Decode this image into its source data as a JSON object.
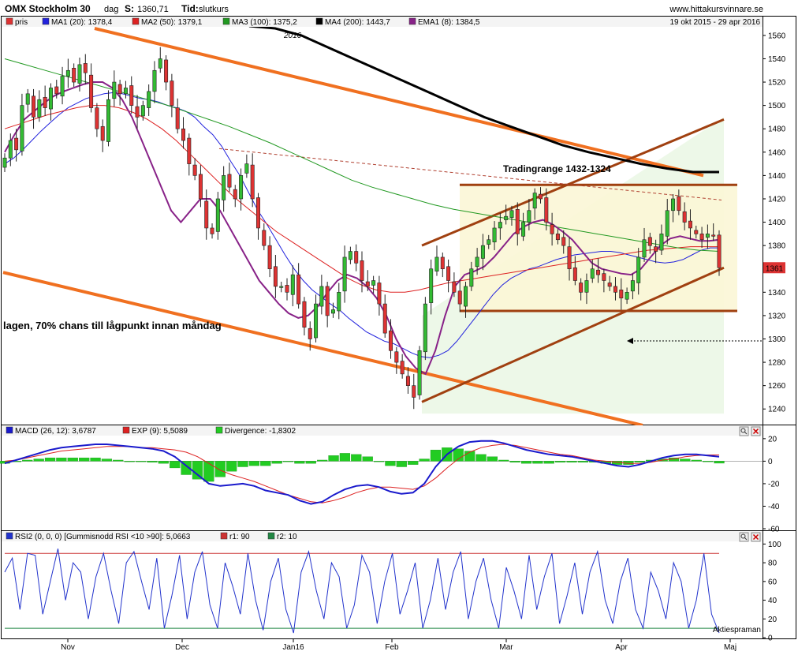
{
  "header": {
    "instrument": "OMX Stockholm 30",
    "interval": "dag",
    "s_label": "S:",
    "s_value": "1360,71",
    "tid_label": "Tid:",
    "tid_value": "slutkurs",
    "site": "www.hittakursvinnare.se",
    "date_range": "19 okt 2015 - 29 apr 2016"
  },
  "colors": {
    "up_candle": "#33bb33",
    "down_candle": "#dd3333",
    "ma1": "#2222dd",
    "ma2": "#dd2222",
    "ma3": "#229922",
    "ma4": "#000000",
    "ema1": "#882288",
    "trend_orange": "#f07020",
    "channel_brown": "#a04010",
    "macd": "#1a1acc",
    "macd_exp": "#dd2222",
    "divergence": "#22cc22",
    "rsi": "#2233cc",
    "rsi_r1": "#cc3333",
    "rsi_r2": "#228844",
    "last_price_box": "#dd3333"
  },
  "chart_data": [
    {
      "type": "candlestick",
      "title": "OMX Stockholm 30",
      "x_tick_labels": [
        "Nov",
        "Dec",
        "Jan16",
        "Feb",
        "Mar",
        "Apr",
        "Maj"
      ],
      "year_marker": "2016",
      "ylim": [
        1228,
        1566
      ],
      "y_ticks": [
        1240,
        1260,
        1280,
        1300,
        1320,
        1340,
        1360,
        1380,
        1400,
        1420,
        1440,
        1460,
        1480,
        1500,
        1520,
        1540,
        1560
      ],
      "last_price_label": "1361",
      "legend": [
        {
          "key": "price",
          "label": "pris",
          "color_key": "down_candle"
        },
        {
          "key": "ma1",
          "label": "MA1 (20): 1378,4",
          "color_key": "ma1"
        },
        {
          "key": "ma2",
          "label": "MA2 (50): 1379,1",
          "color_key": "ma2"
        },
        {
          "key": "ma3",
          "label": "MA3 (100): 1375,2",
          "color_key": "ma3"
        },
        {
          "key": "ma4",
          "label": "MA4 (200): 1443,7",
          "color_key": "ma4"
        },
        {
          "key": "ema1",
          "label": "EMA1 (8): 1384,5",
          "color_key": "ema1"
        }
      ],
      "annotations": {
        "trading_range": "Tradingrange 1432-1324",
        "note": "lagen, 70% chans till lågpunkt innan måndag"
      },
      "trading_range_levels": [
        1432,
        1324
      ],
      "closes": [
        1455,
        1470,
        1462,
        1500,
        1510,
        1490,
        1505,
        1498,
        1515,
        1510,
        1525,
        1530,
        1520,
        1535,
        1528,
        1498,
        1480,
        1470,
        1505,
        1520,
        1510,
        1515,
        1500,
        1490,
        1500,
        1512,
        1530,
        1540,
        1520,
        1500,
        1480,
        1470,
        1450,
        1440,
        1420,
        1395,
        1390,
        1420,
        1440,
        1430,
        1420,
        1440,
        1450,
        1420,
        1395,
        1380,
        1360,
        1345,
        1345,
        1340,
        1355,
        1330,
        1310,
        1300,
        1330,
        1345,
        1320,
        1325,
        1340,
        1370,
        1375,
        1365,
        1350,
        1345,
        1350,
        1330,
        1305,
        1290,
        1280,
        1270,
        1260,
        1250,
        1290,
        1330,
        1360,
        1370,
        1360,
        1350,
        1340,
        1330,
        1345,
        1360,
        1370,
        1380,
        1385,
        1395,
        1400,
        1405,
        1410,
        1390,
        1400,
        1410,
        1425,
        1420,
        1400,
        1390,
        1385,
        1380,
        1360,
        1350,
        1340,
        1350,
        1360,
        1355,
        1350,
        1345,
        1340,
        1335,
        1340,
        1350,
        1370,
        1385,
        1380,
        1375,
        1390,
        1410,
        1420,
        1410,
        1400,
        1395,
        1390,
        1385,
        1390,
        1388,
        1361
      ],
      "series": [
        {
          "name": "MA1 (20)",
          "values": [
            1450,
            1455,
            1462,
            1470,
            1478,
            1485,
            1492,
            1498,
            1502,
            1506,
            1508,
            1510,
            1511,
            1510,
            1508,
            1506,
            1505,
            1503,
            1500,
            1498,
            1495,
            1490,
            1482,
            1475,
            1465,
            1452,
            1440,
            1425,
            1410,
            1398,
            1385,
            1372,
            1360,
            1350,
            1342,
            1336,
            1330,
            1325,
            1318,
            1312,
            1306,
            1302,
            1298,
            1296,
            1292,
            1288,
            1285,
            1284,
            1286,
            1290,
            1298,
            1308,
            1318,
            1328,
            1338,
            1346,
            1352,
            1356,
            1360,
            1362,
            1365,
            1368,
            1370,
            1372,
            1373,
            1374,
            1375,
            1375,
            1374,
            1372,
            1370,
            1368,
            1366,
            1365,
            1366,
            1368,
            1372,
            1376,
            1378,
            1378
          ]
        },
        {
          "name": "MA2 (50)",
          "values": [
            1480,
            1484,
            1488,
            1492,
            1495,
            1498,
            1500,
            1500,
            1498,
            1494,
            1488,
            1480,
            1470,
            1458,
            1446,
            1434,
            1422,
            1412,
            1402,
            1392,
            1384,
            1376,
            1368,
            1360,
            1352,
            1346,
            1342,
            1340,
            1340,
            1342,
            1345,
            1348,
            1350,
            1352,
            1354,
            1356,
            1358,
            1360,
            1362,
            1364,
            1366,
            1368,
            1370,
            1372,
            1374,
            1376,
            1377,
            1378,
            1379,
            1379,
            1379
          ]
        },
        {
          "name": "MA3 (100)",
          "values": [
            1540,
            1535,
            1530,
            1525,
            1520,
            1515,
            1510,
            1505,
            1500,
            1494,
            1488,
            1482,
            1475,
            1468,
            1460,
            1452,
            1444,
            1436,
            1430,
            1425,
            1420,
            1415,
            1411,
            1408,
            1405,
            1402,
            1399,
            1396,
            1393,
            1390,
            1387,
            1384,
            1381,
            1378,
            1376,
            1375
          ]
        },
        {
          "name": "MA4 (200)",
          "values": [
            1568,
            1566,
            1560,
            1550,
            1540,
            1530,
            1520,
            1510,
            1500,
            1490,
            1482,
            1474,
            1466,
            1460,
            1455,
            1450,
            1446,
            1443,
            1443
          ]
        },
        {
          "name": "EMA1 (8)",
          "values": [
            1460,
            1475,
            1488,
            1495,
            1502,
            1508,
            1512,
            1515,
            1518,
            1520,
            1520,
            1515,
            1505,
            1490,
            1470,
            1450,
            1430,
            1410,
            1400,
            1410,
            1420,
            1420,
            1410,
            1395,
            1380,
            1365,
            1350,
            1340,
            1330,
            1322,
            1318,
            1320,
            1328,
            1340,
            1350,
            1355,
            1352,
            1345,
            1335,
            1320,
            1300,
            1285,
            1275,
            1270,
            1290,
            1320,
            1345,
            1355,
            1358,
            1362,
            1370,
            1380,
            1390,
            1396,
            1400,
            1402,
            1398,
            1392,
            1385,
            1375,
            1365,
            1360,
            1358,
            1356,
            1355,
            1360,
            1370,
            1380,
            1386,
            1388,
            1386,
            1384,
            1384,
            1385
          ]
        }
      ]
    },
    {
      "type": "line",
      "title": "MACD (26, 12): 3,6787",
      "ylim": [
        -60,
        22
      ],
      "y_ticks": [
        20,
        0,
        -20,
        -40,
        -60
      ],
      "legend": [
        {
          "label": "MACD (26, 12): 3,6787",
          "color_key": "macd"
        },
        {
          "label": "EXP (9): 5,5089",
          "color_key": "macd_exp"
        },
        {
          "label": "Divergence: -1,8302",
          "color_key": "divergence"
        }
      ],
      "series": [
        {
          "name": "MACD (26, 12)",
          "values": [
            -2,
            1,
            4,
            7,
            10,
            12,
            13,
            14,
            15,
            15,
            14,
            13,
            12,
            11,
            9,
            4,
            -4,
            -12,
            -20,
            -22,
            -21,
            -20,
            -22,
            -26,
            -28,
            -30,
            -35,
            -38,
            -36,
            -30,
            -25,
            -22,
            -21,
            -23,
            -27,
            -29,
            -28,
            -20,
            -5,
            6,
            13,
            17,
            18,
            18,
            16,
            13,
            10,
            8,
            6,
            5,
            4,
            2,
            0,
            -2,
            -4,
            -5,
            -3,
            0,
            3,
            5,
            6,
            6,
            5,
            4
          ]
        },
        {
          "name": "EXP (9)",
          "values": [
            0,
            1,
            3,
            5,
            7,
            9,
            10,
            11,
            12,
            13,
            13,
            13,
            12,
            12,
            11,
            10,
            8,
            4,
            -2,
            -8,
            -12,
            -15,
            -18,
            -22,
            -26,
            -30,
            -33,
            -36,
            -37,
            -35,
            -32,
            -28,
            -25,
            -23,
            -23,
            -24,
            -25,
            -22,
            -15,
            -6,
            2,
            8,
            12,
            14,
            15,
            14,
            12,
            10,
            8,
            6,
            5,
            3,
            1,
            0,
            -1,
            -2,
            -2,
            -1,
            1,
            2,
            4,
            5,
            5.5,
            5.5
          ]
        },
        {
          "name": "Divergence",
          "values": [
            -2,
            0,
            1,
            2,
            3,
            3,
            3,
            3,
            3,
            2,
            1,
            0,
            0,
            -1,
            -2,
            -6,
            -12,
            -16,
            -18,
            -14,
            -9,
            -5,
            -4,
            -4,
            -2,
            0,
            -2,
            -2,
            1,
            5,
            7,
            6,
            4,
            0,
            -4,
            -5,
            -3,
            2,
            10,
            12,
            11,
            9,
            6,
            4,
            1,
            -1,
            -2,
            -2,
            -2,
            -1,
            -1,
            -1,
            -1,
            -2,
            -3,
            -3,
            -1,
            1,
            2,
            3,
            2,
            1,
            -0.5,
            -1.8
          ]
        }
      ]
    },
    {
      "type": "line",
      "title": "RSI2 (0, 0, 0) [Gummisnodd RSI <10 >90]: 5,0663",
      "ylim": [
        0,
        102
      ],
      "y_ticks": [
        100,
        80,
        60,
        40,
        20,
        0
      ],
      "legend": [
        {
          "label": "RSI2 (0, 0, 0) [Gummisnodd RSI <10 >90]: 5,0663",
          "color_key": "rsi"
        },
        {
          "label": "r1: 90",
          "color_key": "rsi_r1"
        },
        {
          "label": "r2: 10",
          "color_key": "rsi_r2"
        }
      ],
      "reference_lines": [
        90,
        10
      ],
      "footer": "Aktiespraman",
      "series": [
        {
          "name": "RSI2",
          "values": [
            70,
            85,
            30,
            90,
            88,
            25,
            60,
            95,
            40,
            80,
            70,
            20,
            65,
            90,
            50,
            15,
            80,
            92,
            60,
            30,
            85,
            10,
            45,
            88,
            20,
            70,
            92,
            35,
            10,
            80,
            55,
            25,
            90,
            40,
            8,
            60,
            85,
            30,
            5,
            70,
            92,
            50,
            20,
            80,
            65,
            10,
            35,
            88,
            70,
            15,
            60,
            90,
            25,
            50,
            80,
            10,
            40,
            85,
            30,
            70,
            92,
            20,
            60,
            85,
            40,
            10,
            75,
            50,
            20,
            88,
            30,
            65,
            90,
            15,
            45,
            80,
            25,
            70,
            92,
            40,
            15,
            60,
            85,
            30,
            10,
            70,
            50,
            20,
            80,
            60,
            10,
            40,
            90,
            25,
            5
          ]
        }
      ]
    }
  ]
}
